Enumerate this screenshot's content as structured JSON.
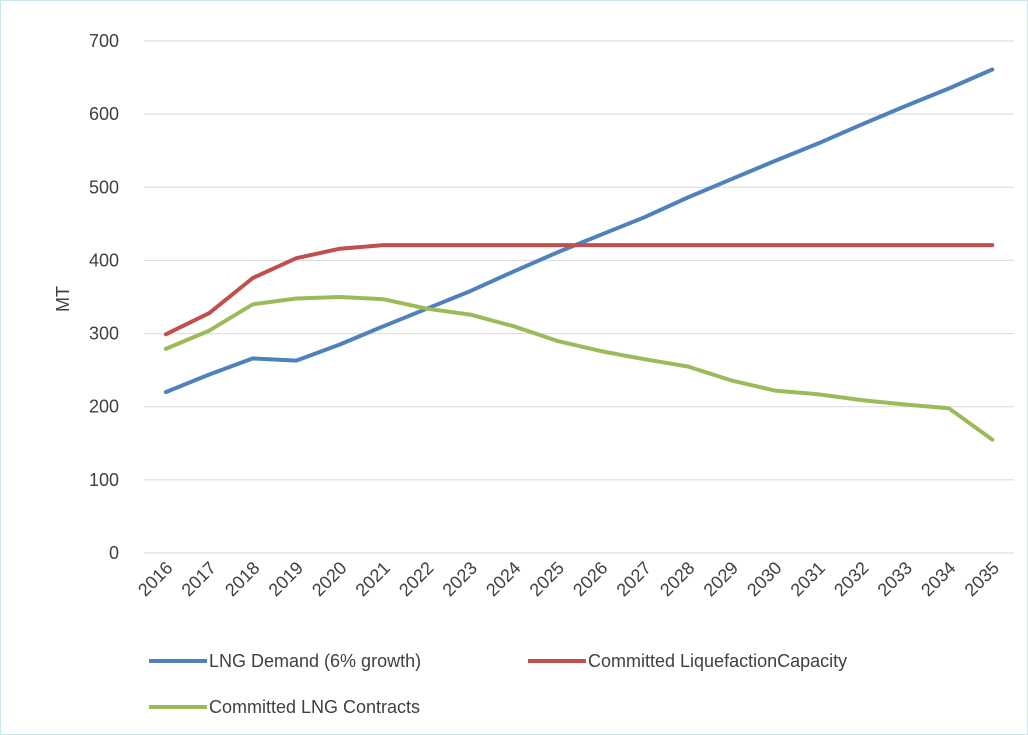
{
  "chart_data": {
    "type": "line",
    "title": "",
    "xlabel": "",
    "ylabel": "MT",
    "ylim": [
      0,
      700
    ],
    "yticks": [
      0,
      100,
      200,
      300,
      400,
      500,
      600,
      700
    ],
    "grid": "horizontal",
    "legend_position": "bottom",
    "categories": [
      "2016",
      "2017",
      "2018",
      "2019",
      "2020",
      "2021",
      "2022",
      "2023",
      "2024",
      "2025",
      "2026",
      "2027",
      "2028",
      "2029",
      "2030",
      "2031",
      "2032",
      "2033",
      "2034",
      "2035"
    ],
    "series": [
      {
        "name": "LNG Demand (6% growth)",
        "color": "#4f81bd",
        "values": [
          220,
          244,
          266,
          263,
          285,
          310,
          334,
          358,
          385,
          411,
          435,
          459,
          486,
          511,
          536,
          560,
          586,
          611,
          635,
          661
        ]
      },
      {
        "name": "Committed LiquefactionCapacity",
        "color": "#c0504d",
        "values": [
          299,
          328,
          376,
          403,
          416,
          421,
          421,
          421,
          421,
          421,
          421,
          421,
          421,
          421,
          421,
          421,
          421,
          421,
          421,
          421
        ]
      },
      {
        "name": "Committed LNG Contracts",
        "color": "#9bbb59",
        "values": [
          279,
          304,
          340,
          348,
          350,
          347,
          334,
          326,
          310,
          290,
          276,
          265,
          255,
          236,
          222,
          217,
          209,
          203,
          198,
          155
        ]
      }
    ]
  }
}
